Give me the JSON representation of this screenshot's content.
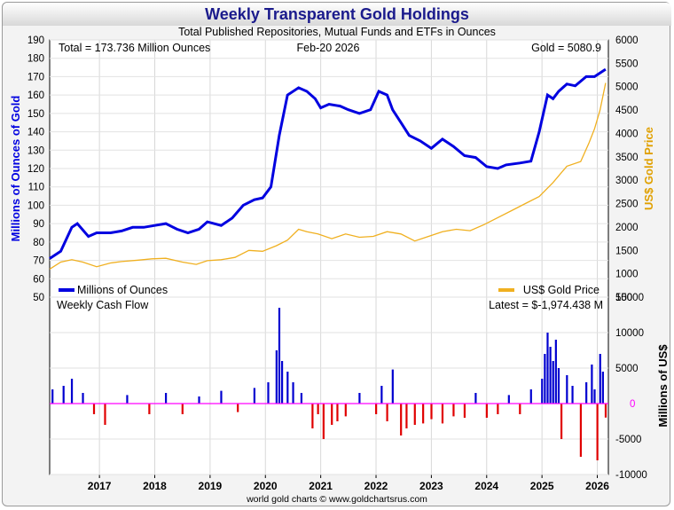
{
  "header": {
    "title": "Weekly Transparent Gold Holdings",
    "subtitle": "Total Published Repositories, Mutual Funds and ETFs in Ounces",
    "footer": "world gold charts © www.goldchartsrus.com"
  },
  "chart_data": [
    {
      "type": "line",
      "panel": "top",
      "title": "Weekly Transparent Gold Holdings",
      "annotations": {
        "total": "Total = 173.736 Million Ounces",
        "date": "Feb-20  2026",
        "gold": "Gold = 5080.9"
      },
      "ylabel_left": "Millions of Ounces of Gold",
      "ylabel_right": "US$ Gold Price",
      "ylim_left": [
        50,
        190
      ],
      "ylim_right": [
        500,
        6000
      ],
      "yticks_left": [
        "190",
        "180",
        "170",
        "160",
        "150",
        "140",
        "130",
        "120",
        "110",
        "100",
        "90",
        "80",
        "70",
        "60",
        "50"
      ],
      "yticks_right": [
        "6000",
        "5500",
        "5000",
        "4500",
        "4000",
        "3500",
        "3000",
        "2500",
        "2000",
        "1500",
        "1000",
        "500"
      ],
      "xlim": [
        2016.1,
        2026.2
      ],
      "colors": {
        "holdings": "#0000e0",
        "gold": "#f0b020"
      },
      "legend": [
        "Millions of Ounces",
        "US$ Gold Price"
      ],
      "series": [
        {
          "name": "Millions of Ounces",
          "x": [
            2016.1,
            2016.3,
            2016.5,
            2016.6,
            2016.8,
            2016.95,
            2017.2,
            2017.4,
            2017.6,
            2017.8,
            2018.0,
            2018.2,
            2018.4,
            2018.6,
            2018.8,
            2018.95,
            2019.2,
            2019.4,
            2019.6,
            2019.8,
            2019.95,
            2020.1,
            2020.25,
            2020.4,
            2020.6,
            2020.75,
            2020.9,
            2021.0,
            2021.15,
            2021.35,
            2021.5,
            2021.7,
            2021.9,
            2022.05,
            2022.2,
            2022.3,
            2022.45,
            2022.6,
            2022.8,
            2023.0,
            2023.2,
            2023.4,
            2023.6,
            2023.8,
            2024.0,
            2024.2,
            2024.35,
            2024.6,
            2024.8,
            2024.95,
            2025.1,
            2025.2,
            2025.3,
            2025.45,
            2025.6,
            2025.8,
            2025.95,
            2026.05,
            2026.15
          ],
          "y": [
            71,
            75,
            88,
            90,
            83,
            85,
            85,
            86,
            88,
            88,
            89,
            90,
            87,
            85,
            87,
            91,
            89,
            93,
            100,
            103,
            104,
            110,
            138,
            160,
            164,
            162,
            158,
            153,
            155,
            154,
            152,
            150,
            152,
            162,
            160,
            152,
            145,
            138,
            135,
            131,
            136,
            132,
            127,
            126,
            121,
            120,
            122,
            123,
            124,
            140,
            160,
            158,
            162,
            166,
            165,
            170,
            170,
            172,
            174
          ]
        },
        {
          "name": "US$ Gold Price",
          "x": [
            2016.1,
            2016.3,
            2016.5,
            2016.7,
            2016.95,
            2017.2,
            2017.4,
            2017.7,
            2017.95,
            2018.2,
            2018.5,
            2018.75,
            2018.95,
            2019.2,
            2019.45,
            2019.7,
            2019.95,
            2020.2,
            2020.4,
            2020.6,
            2020.75,
            2020.95,
            2021.2,
            2021.45,
            2021.7,
            2021.95,
            2022.2,
            2022.45,
            2022.7,
            2022.95,
            2023.2,
            2023.45,
            2023.7,
            2023.95,
            2024.2,
            2024.45,
            2024.7,
            2024.95,
            2025.2,
            2025.45,
            2025.7,
            2025.85,
            2025.95,
            2026.05,
            2026.15
          ],
          "y": [
            1100,
            1250,
            1300,
            1250,
            1150,
            1230,
            1260,
            1290,
            1320,
            1330,
            1250,
            1200,
            1280,
            1300,
            1350,
            1500,
            1480,
            1600,
            1720,
            1950,
            1900,
            1850,
            1750,
            1850,
            1780,
            1800,
            1900,
            1850,
            1700,
            1800,
            1900,
            1950,
            1920,
            2050,
            2200,
            2350,
            2500,
            2650,
            2950,
            3300,
            3400,
            3800,
            4100,
            4500,
            5080
          ]
        }
      ]
    },
    {
      "type": "bar",
      "panel": "bottom",
      "title": "Weekly Cash Flow",
      "annotation": "Latest = $-1,974.438 M",
      "ylabel": "Millions of US$",
      "ylim": [
        -10000,
        15000
      ],
      "yticks": [
        "15000",
        "10000",
        "5000",
        "0",
        "-5000",
        "-10000"
      ],
      "xlabels": [
        "2017",
        "2018",
        "2019",
        "2020",
        "2021",
        "2022",
        "2023",
        "2024",
        "2025",
        "2026"
      ],
      "colors": {
        "inflow": "#0000d0",
        "outflow": "#e00000",
        "zero": "#ff00ff"
      },
      "series": [
        {
          "name": "Weekly Cash Flow (Millions US$)",
          "x": [
            2016.15,
            2016.35,
            2016.5,
            2016.7,
            2016.9,
            2017.1,
            2017.5,
            2017.9,
            2018.2,
            2018.5,
            2018.8,
            2019.2,
            2019.5,
            2019.8,
            2020.05,
            2020.2,
            2020.25,
            2020.3,
            2020.4,
            2020.5,
            2020.65,
            2020.85,
            2020.95,
            2021.05,
            2021.2,
            2021.3,
            2021.45,
            2021.7,
            2022.0,
            2022.1,
            2022.2,
            2022.3,
            2022.45,
            2022.55,
            2022.7,
            2022.85,
            2023.0,
            2023.2,
            2023.4,
            2023.6,
            2023.8,
            2024.0,
            2024.2,
            2024.4,
            2024.6,
            2024.8,
            2025.0,
            2025.05,
            2025.1,
            2025.15,
            2025.2,
            2025.25,
            2025.3,
            2025.35,
            2025.45,
            2025.55,
            2025.7,
            2025.8,
            2025.9,
            2025.95,
            2026.0,
            2026.05,
            2026.1,
            2026.15
          ],
          "y": [
            2000,
            2500,
            3500,
            1500,
            -1500,
            -3000,
            1200,
            -1500,
            1500,
            -1500,
            1000,
            1800,
            -1200,
            2200,
            3000,
            7500,
            13500,
            6000,
            4500,
            3000,
            1500,
            -3500,
            -1500,
            -5000,
            -3000,
            -2500,
            -1800,
            1500,
            -1500,
            2500,
            -2500,
            4800,
            -4500,
            -3500,
            -3000,
            -2800,
            -2200,
            -2800,
            -1800,
            -2000,
            1500,
            -2000,
            -1500,
            1200,
            -1500,
            2000,
            3500,
            7000,
            10000,
            8000,
            6000,
            9000,
            5000,
            -5000,
            4000,
            2500,
            -7500,
            3000,
            5500,
            2000,
            -8000,
            7000,
            4500,
            -1974
          ]
        }
      ]
    }
  ]
}
